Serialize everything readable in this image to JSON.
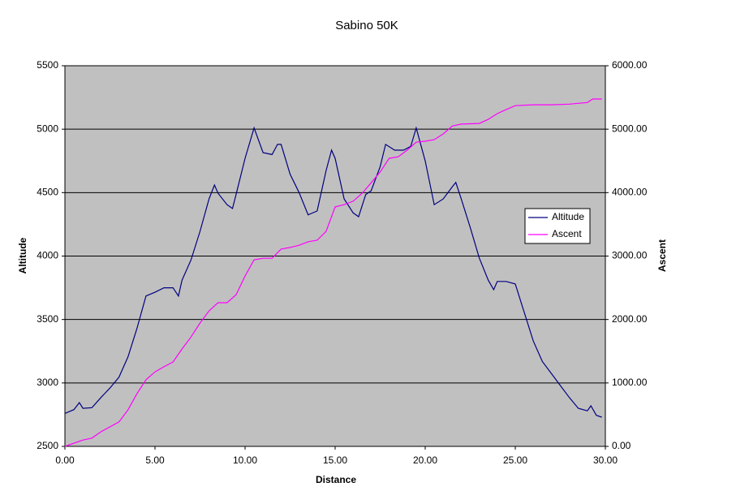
{
  "chart_data": {
    "type": "line",
    "title": "Sabino 50K",
    "x_label": "Distance",
    "y_label": "Altitude",
    "y2_label": "Ascent",
    "xlim": [
      0,
      30
    ],
    "xticks": [
      {
        "value": 0,
        "label": "0.00"
      },
      {
        "value": 5,
        "label": "5.00"
      },
      {
        "value": 10,
        "label": "10.00"
      },
      {
        "value": 15,
        "label": "15.00"
      },
      {
        "value": 20,
        "label": "20.00"
      },
      {
        "value": 25,
        "label": "25.00"
      },
      {
        "value": 30,
        "label": "30.00"
      }
    ],
    "ylim": [
      2500,
      5500
    ],
    "yticks": [
      2500,
      3000,
      3500,
      4000,
      4500,
      5000,
      5500
    ],
    "y2lim": [
      0,
      6000
    ],
    "y2ticks": [
      {
        "value": 0,
        "label": "0.00"
      },
      {
        "value": 1000,
        "label": "1000.00"
      },
      {
        "value": 2000,
        "label": "2000.00"
      },
      {
        "value": 3000,
        "label": "3000.00"
      },
      {
        "value": 4000,
        "label": "4000.00"
      },
      {
        "value": 5000,
        "label": "5000.00"
      },
      {
        "value": 6000,
        "label": "6000.00"
      }
    ],
    "grid": true,
    "legend": "right",
    "plot_background": "#c0c0c0",
    "series": [
      {
        "name": "Altitude",
        "color": "#000080",
        "x": [
          0,
          0.5,
          0.8,
          1.0,
          1.5,
          2.0,
          2.5,
          3.0,
          3.5,
          4.0,
          4.5,
          5.0,
          5.5,
          6.0,
          6.3,
          6.5,
          7.0,
          7.5,
          8.0,
          8.3,
          8.5,
          9.0,
          9.3,
          9.5,
          10.0,
          10.5,
          11.0,
          11.5,
          11.8,
          12.0,
          12.5,
          13.0,
          13.5,
          14.0,
          14.5,
          14.8,
          15.0,
          15.5,
          16.0,
          16.3,
          16.7,
          17.0,
          17.5,
          17.8,
          18.3,
          18.8,
          19.2,
          19.5,
          20.0,
          20.5,
          21.0,
          21.5,
          21.7,
          22.0,
          22.5,
          23.0,
          23.5,
          23.8,
          24.0,
          24.5,
          25.0,
          25.5,
          26.0,
          26.5,
          27.0,
          27.5,
          28.0,
          28.5,
          29.0,
          29.2,
          29.5,
          29.8
        ],
        "values": [
          2760,
          2790,
          2845,
          2800,
          2805,
          2885,
          2960,
          3045,
          3205,
          3430,
          3685,
          3715,
          3750,
          3750,
          3685,
          3810,
          3970,
          4195,
          4450,
          4560,
          4495,
          4405,
          4375,
          4485,
          4770,
          5010,
          4815,
          4800,
          4880,
          4880,
          4645,
          4500,
          4325,
          4355,
          4675,
          4835,
          4770,
          4450,
          4340,
          4310,
          4485,
          4515,
          4705,
          4880,
          4835,
          4835,
          4865,
          5010,
          4750,
          4405,
          4450,
          4545,
          4580,
          4450,
          4225,
          3985,
          3810,
          3735,
          3800,
          3800,
          3780,
          3555,
          3330,
          3170,
          3075,
          2980,
          2885,
          2800,
          2780,
          2820,
          2745,
          2730
        ]
      },
      {
        "name": "Ascent",
        "color": "#ff00ff",
        "axis": "y2",
        "x": [
          0,
          1.0,
          1.5,
          2.0,
          3.0,
          3.5,
          4.0,
          4.5,
          5.0,
          5.5,
          6.0,
          6.5,
          7.0,
          7.5,
          8.0,
          8.5,
          9.0,
          9.5,
          10.0,
          10.5,
          11.0,
          11.5,
          12.0,
          12.5,
          13.0,
          13.5,
          14.0,
          14.5,
          15.0,
          15.5,
          16.0,
          16.5,
          17.0,
          17.5,
          18.0,
          18.5,
          19.0,
          19.5,
          20.0,
          20.5,
          21.0,
          21.5,
          22.0,
          23.0,
          23.5,
          24.0,
          24.5,
          25.0,
          26.0,
          27.0,
          28.0,
          29.0,
          29.3,
          29.8
        ],
        "values": [
          0,
          100,
          130,
          230,
          385,
          575,
          830,
          1050,
          1175,
          1255,
          1330,
          1535,
          1725,
          1945,
          2135,
          2265,
          2265,
          2390,
          2685,
          2940,
          2965,
          2965,
          3110,
          3135,
          3170,
          3225,
          3250,
          3390,
          3775,
          3810,
          3865,
          3990,
          4155,
          4325,
          4540,
          4565,
          4670,
          4795,
          4810,
          4835,
          4925,
          5050,
          5080,
          5090,
          5155,
          5245,
          5310,
          5370,
          5385,
          5385,
          5395,
          5420,
          5475,
          5475
        ]
      }
    ]
  }
}
